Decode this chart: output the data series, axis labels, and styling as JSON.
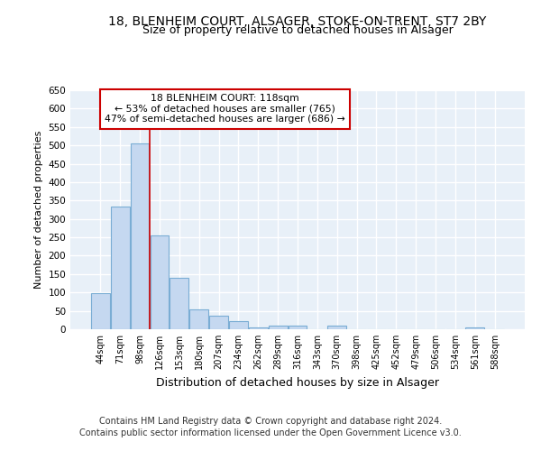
{
  "title1": "18, BLENHEIM COURT, ALSAGER, STOKE-ON-TRENT, ST7 2BY",
  "title2": "Size of property relative to detached houses in Alsager",
  "xlabel": "Distribution of detached houses by size in Alsager",
  "ylabel": "Number of detached properties",
  "categories": [
    "44sqm",
    "71sqm",
    "98sqm",
    "126sqm",
    "153sqm",
    "180sqm",
    "207sqm",
    "234sqm",
    "262sqm",
    "289sqm",
    "316sqm",
    "343sqm",
    "370sqm",
    "398sqm",
    "425sqm",
    "452sqm",
    "479sqm",
    "506sqm",
    "534sqm",
    "561sqm",
    "588sqm"
  ],
  "values": [
    97,
    333,
    505,
    254,
    140,
    53,
    38,
    21,
    5,
    10,
    10,
    0,
    10,
    0,
    0,
    0,
    0,
    0,
    0,
    5,
    0
  ],
  "bar_color": "#c5d8f0",
  "bar_edge_color": "#7aadd4",
  "vline_x": 2.5,
  "vline_color": "#cc0000",
  "annotation_text": "18 BLENHEIM COURT: 118sqm\n← 53% of detached houses are smaller (765)\n47% of semi-detached houses are larger (686) →",
  "annotation_box_color": "white",
  "annotation_box_edge": "#cc0000",
  "ylim": [
    0,
    650
  ],
  "yticks": [
    0,
    50,
    100,
    150,
    200,
    250,
    300,
    350,
    400,
    450,
    500,
    550,
    600,
    650
  ],
  "footer1": "Contains HM Land Registry data © Crown copyright and database right 2024.",
  "footer2": "Contains public sector information licensed under the Open Government Licence v3.0.",
  "bg_color": "#e8f0f8",
  "grid_color": "#ffffff",
  "title_fontsize": 10,
  "subtitle_fontsize": 9,
  "ylabel_fontsize": 8,
  "xlabel_fontsize": 9
}
